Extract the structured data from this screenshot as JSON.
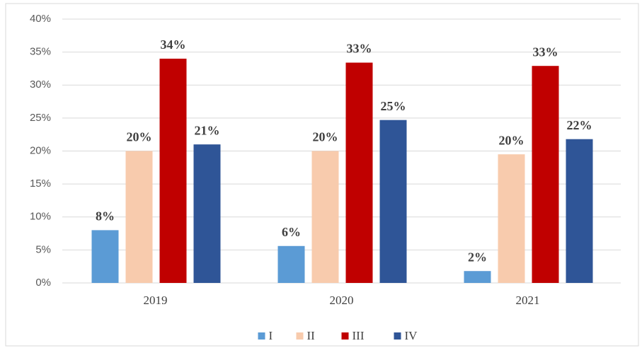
{
  "chart_data": {
    "type": "bar",
    "categories": [
      "2019",
      "2020",
      "2021"
    ],
    "series": [
      {
        "name": "I",
        "color": "#5b9bd5",
        "values": [
          8,
          5.6,
          1.8
        ],
        "value_labels": [
          "8%",
          "6%",
          "2%"
        ]
      },
      {
        "name": "II",
        "color": "#f8cbad",
        "values": [
          20,
          20,
          19.5
        ],
        "value_labels": [
          "20%",
          "20%",
          "20%"
        ]
      },
      {
        "name": "III",
        "color": "#c00000",
        "values": [
          34,
          33.4,
          32.9
        ],
        "value_labels": [
          "34%",
          "33%",
          "33%"
        ]
      },
      {
        "name": "IV",
        "color": "#2f5597",
        "values": [
          21,
          24.7,
          21.8
        ],
        "value_labels": [
          "21%",
          "25%",
          "22%"
        ]
      }
    ],
    "ylim": [
      0,
      40
    ],
    "yticks": [
      {
        "value": 0,
        "label": "0%"
      },
      {
        "value": 5,
        "label": "5%"
      },
      {
        "value": 10,
        "label": "10%"
      },
      {
        "value": 15,
        "label": "15%"
      },
      {
        "value": 20,
        "label": "20%"
      },
      {
        "value": 25,
        "label": "25%"
      },
      {
        "value": 30,
        "label": "30%"
      },
      {
        "value": 35,
        "label": "35%"
      },
      {
        "value": 40,
        "label": "40%"
      }
    ],
    "grid": true,
    "legend": "bottom"
  }
}
